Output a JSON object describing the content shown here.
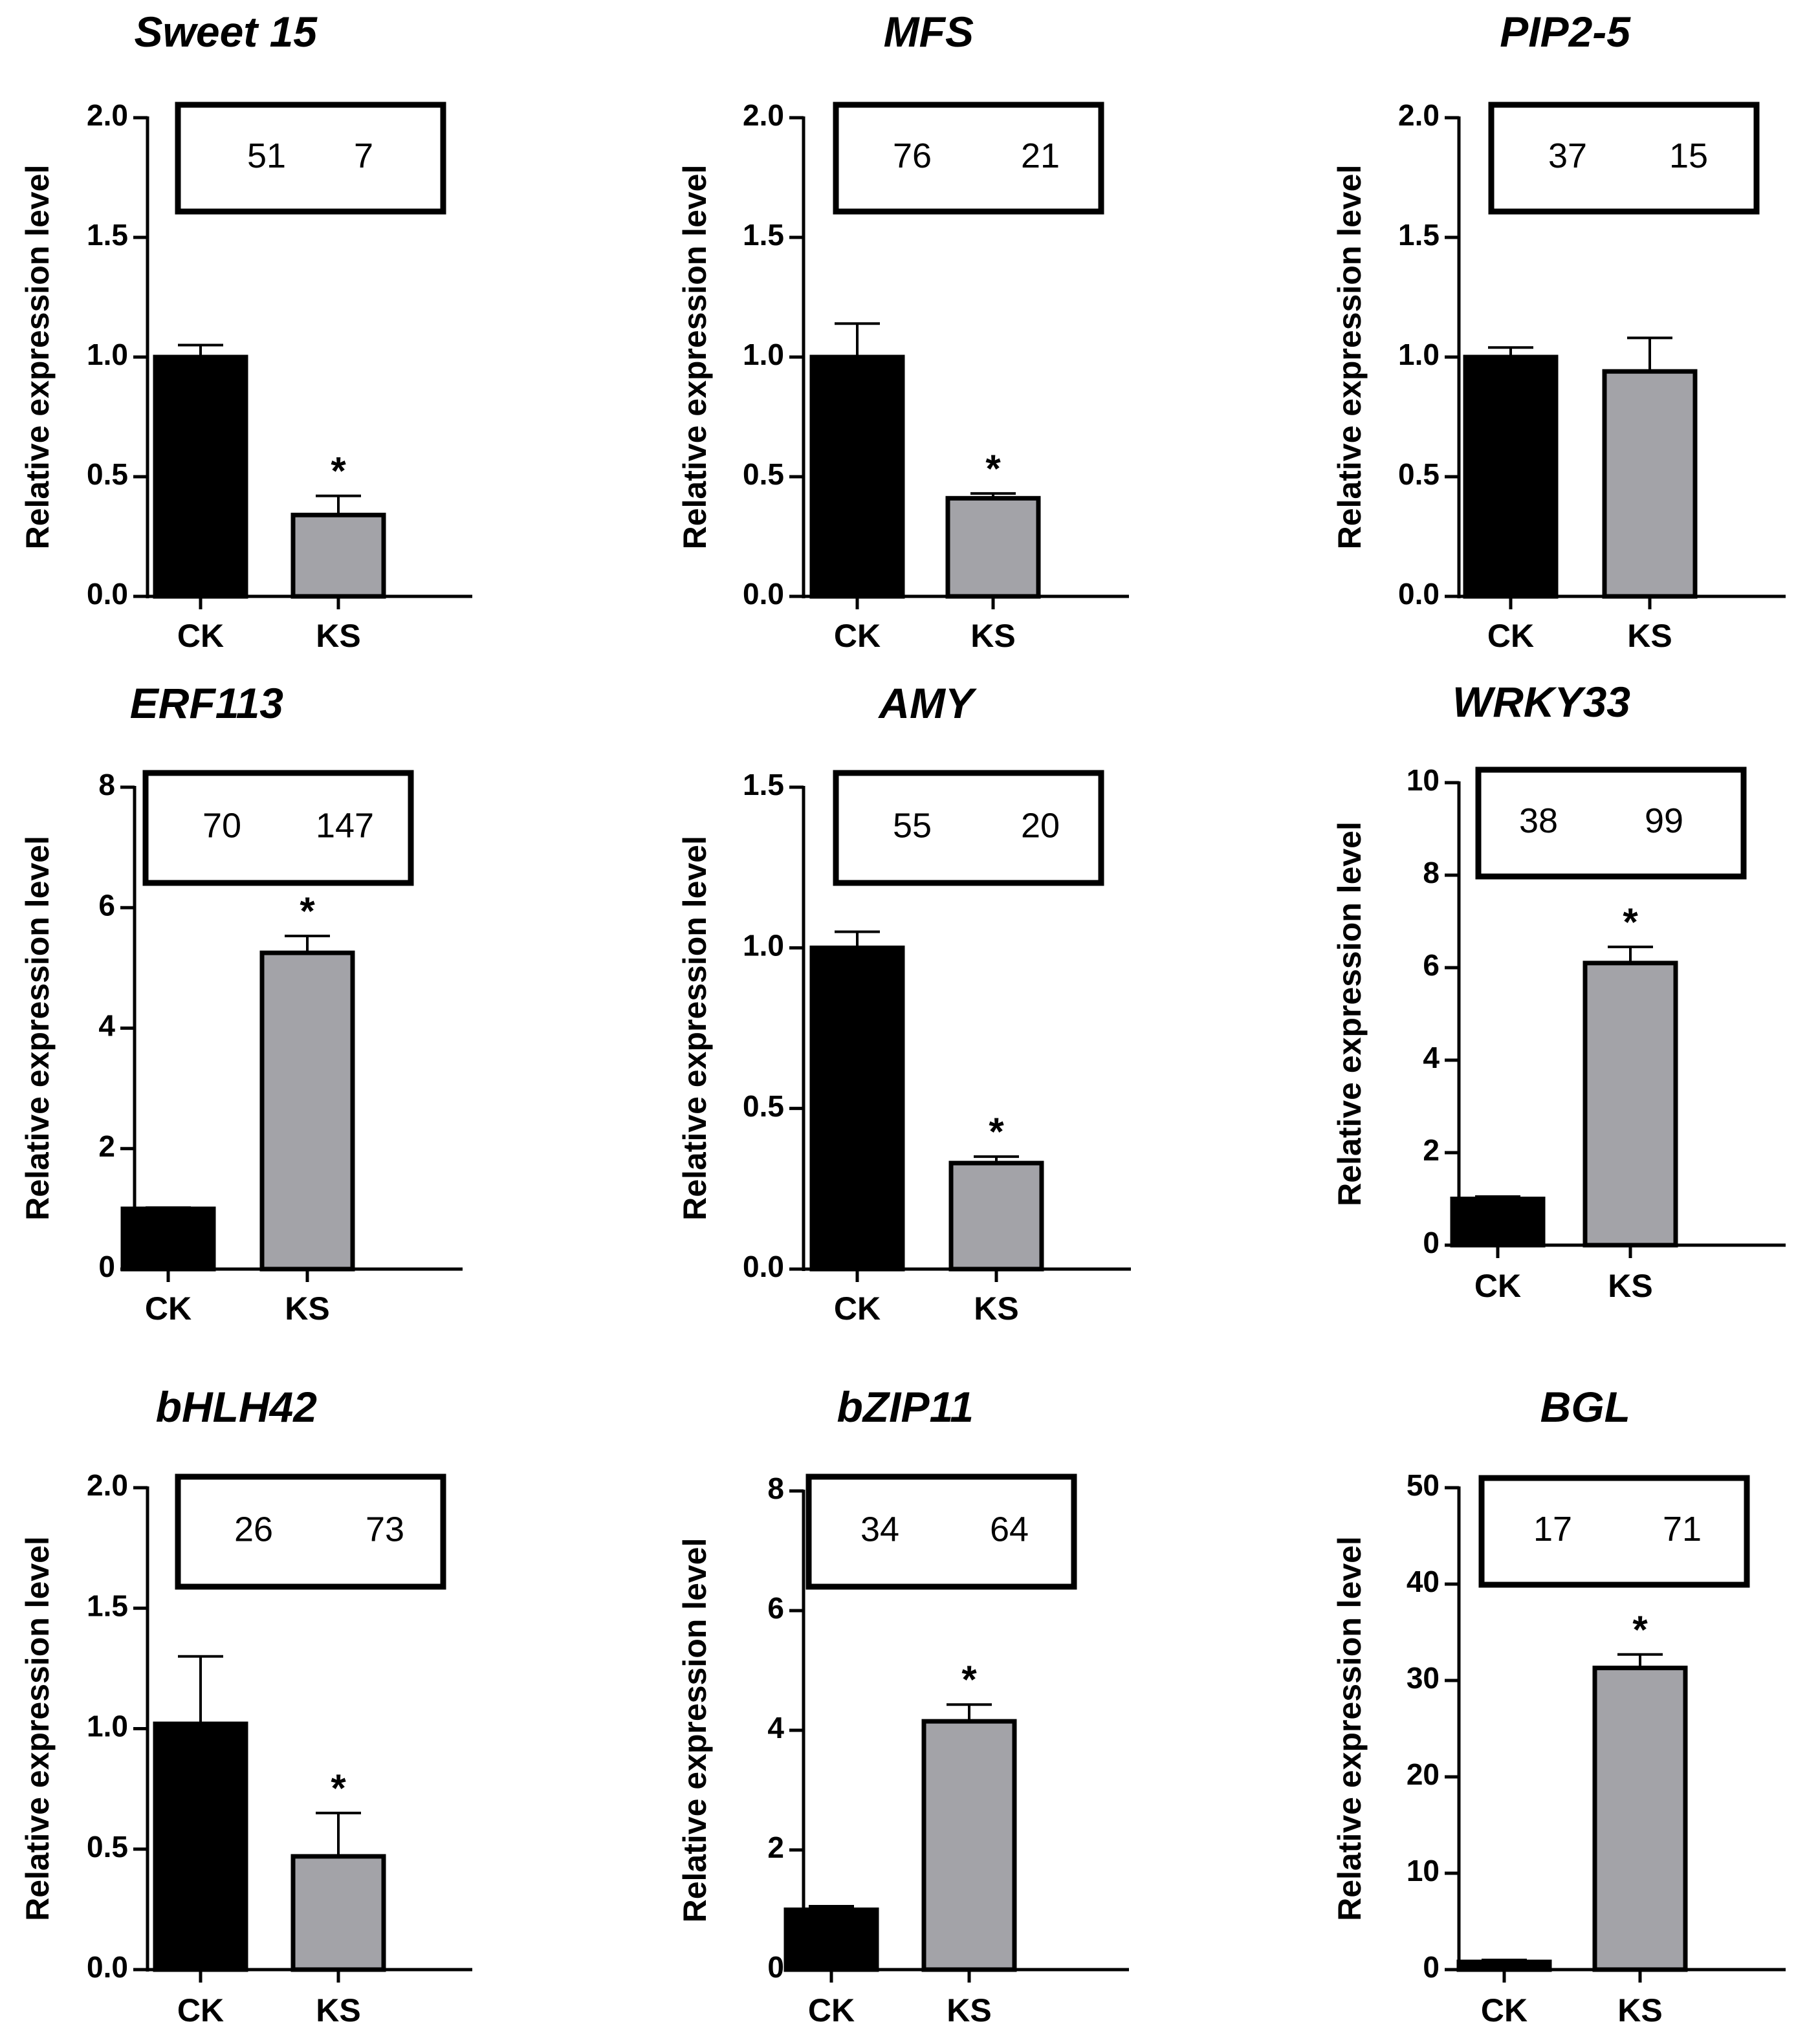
{
  "chart_data": [
    {
      "type": "bar",
      "title": "Sweet 15",
      "ylabel": "Relative expression level",
      "categories": [
        "CK",
        "KS"
      ],
      "values": [
        1.0,
        0.34
      ],
      "errors": [
        0.05,
        0.08
      ],
      "ylim": [
        0,
        2.0
      ],
      "yticks": [
        "0.0",
        "0.5",
        "1.0",
        "1.5",
        "2.0"
      ],
      "yticks_values": [
        0,
        0.5,
        1.0,
        1.5,
        2.0
      ],
      "box_values": [
        "51",
        "7"
      ],
      "significance": [
        "",
        "*"
      ],
      "colors": [
        "#000000",
        "#a3a3a8"
      ]
    },
    {
      "type": "bar",
      "title": "MFS",
      "ylabel": "Relative expression level",
      "categories": [
        "CK",
        "KS"
      ],
      "values": [
        1.0,
        0.41
      ],
      "errors": [
        0.14,
        0.02
      ],
      "ylim": [
        0,
        2.0
      ],
      "yticks": [
        "0.0",
        "0.5",
        "1.0",
        "1.5",
        "2.0"
      ],
      "yticks_values": [
        0,
        0.5,
        1.0,
        1.5,
        2.0
      ],
      "box_values": [
        "76",
        "21"
      ],
      "significance": [
        "",
        "*"
      ],
      "colors": [
        "#000000",
        "#a3a3a8"
      ]
    },
    {
      "type": "bar",
      "title": "PIP2-5",
      "ylabel": "Relative expression level",
      "categories": [
        "CK",
        "KS"
      ],
      "values": [
        1.0,
        0.94
      ],
      "errors": [
        0.04,
        0.14
      ],
      "ylim": [
        0,
        2.0
      ],
      "yticks": [
        "0.0",
        "0.5",
        "1.0",
        "1.5",
        "2.0"
      ],
      "yticks_values": [
        0,
        0.5,
        1.0,
        1.5,
        2.0
      ],
      "box_values": [
        "37",
        "15"
      ],
      "significance": [
        "",
        ""
      ],
      "colors": [
        "#000000",
        "#a3a3a8"
      ]
    },
    {
      "type": "bar",
      "title": "ERF113",
      "ylabel": "Relative expression level",
      "categories": [
        "CK",
        "KS"
      ],
      "values": [
        1.0,
        5.25
      ],
      "errors": [
        0.02,
        0.28
      ],
      "ylim": [
        0,
        8
      ],
      "yticks": [
        "0",
        "2",
        "4",
        "6",
        "8"
      ],
      "yticks_values": [
        0,
        2,
        4,
        6,
        8
      ],
      "box_values": [
        "70",
        "147"
      ],
      "significance": [
        "",
        "*"
      ],
      "colors": [
        "#000000",
        "#a3a3a8"
      ]
    },
    {
      "type": "bar",
      "title": "AMY",
      "ylabel": "Relative expression level",
      "categories": [
        "CK",
        "KS"
      ],
      "values": [
        1.0,
        0.33
      ],
      "errors": [
        0.05,
        0.02
      ],
      "ylim": [
        0,
        1.5
      ],
      "yticks": [
        "0.0",
        "0.5",
        "1.0",
        "1.5"
      ],
      "yticks_values": [
        0,
        0.5,
        1.0,
        1.5
      ],
      "box_values": [
        "55",
        "20"
      ],
      "significance": [
        "",
        "*"
      ],
      "colors": [
        "#000000",
        "#a3a3a8"
      ]
    },
    {
      "type": "bar",
      "title": "WRKY33",
      "ylabel": "Relative expression level",
      "categories": [
        "CK",
        "KS"
      ],
      "values": [
        1.0,
        6.1
      ],
      "errors": [
        0.05,
        0.35
      ],
      "ylim": [
        0,
        10
      ],
      "yticks": [
        "0",
        "2",
        "4",
        "6",
        "8",
        "10"
      ],
      "yticks_values": [
        0,
        2,
        4,
        6,
        8,
        10
      ],
      "box_values": [
        "38",
        "99"
      ],
      "significance": [
        "",
        "*"
      ],
      "colors": [
        "#000000",
        "#a3a3a8"
      ]
    },
    {
      "type": "bar",
      "title": "bHLH42",
      "ylabel": "Relative expression level",
      "categories": [
        "CK",
        "KS"
      ],
      "values": [
        1.02,
        0.47
      ],
      "errors": [
        0.28,
        0.18
      ],
      "ylim": [
        0,
        2.0
      ],
      "yticks": [
        "0.0",
        "0.5",
        "1.0",
        "1.5",
        "2.0"
      ],
      "yticks_values": [
        0,
        0.5,
        1.0,
        1.5,
        2.0
      ],
      "box_values": [
        "26",
        "73"
      ],
      "significance": [
        "",
        "*"
      ],
      "colors": [
        "#000000",
        "#a3a3a8"
      ]
    },
    {
      "type": "bar",
      "title": "bZIP11",
      "ylabel": "Relative expression level",
      "categories": [
        "CK",
        "KS"
      ],
      "values": [
        1.0,
        4.15
      ],
      "errors": [
        0.06,
        0.28
      ],
      "ylim": [
        0,
        8
      ],
      "yticks": [
        "0",
        "2",
        "4",
        "6",
        "8"
      ],
      "yticks_values": [
        0,
        2,
        4,
        6,
        8
      ],
      "box_values": [
        "34",
        "64"
      ],
      "significance": [
        "",
        "*"
      ],
      "colors": [
        "#000000",
        "#a3a3a8"
      ]
    },
    {
      "type": "bar",
      "title": "BGL",
      "ylabel": "Relative expression level",
      "categories": [
        "CK",
        "KS"
      ],
      "values": [
        0.8,
        31.3
      ],
      "errors": [
        0.2,
        1.4
      ],
      "ylim": [
        0,
        50
      ],
      "yticks": [
        "0",
        "10",
        "20",
        "30",
        "40",
        "50"
      ],
      "yticks_values": [
        0,
        10,
        20,
        30,
        40,
        50
      ],
      "box_values": [
        "17",
        "71"
      ],
      "significance": [
        "",
        "*"
      ],
      "colors": [
        "#000000",
        "#a3a3a8"
      ]
    }
  ]
}
